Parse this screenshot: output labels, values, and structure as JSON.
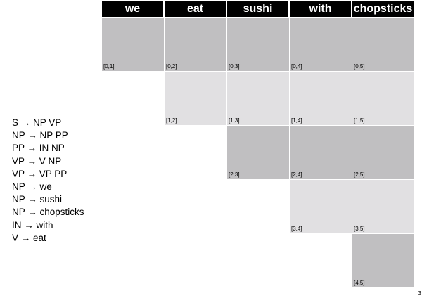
{
  "words": [
    "we",
    "eat",
    "sushi",
    "with",
    "chopsticks"
  ],
  "colors": {
    "dark_cell": "#c0bfc1",
    "light_cell": "#e1e0e2",
    "header_bg": "#000000",
    "header_text": "#ffffff"
  },
  "cells": [
    {
      "label": "[0,1]",
      "row": 0,
      "col": 0,
      "shade": "dark"
    },
    {
      "label": "[0,2]",
      "row": 0,
      "col": 1,
      "shade": "dark"
    },
    {
      "label": "[0,3]",
      "row": 0,
      "col": 2,
      "shade": "dark"
    },
    {
      "label": "[0,4]",
      "row": 0,
      "col": 3,
      "shade": "dark"
    },
    {
      "label": "[0,5]",
      "row": 0,
      "col": 4,
      "shade": "dark"
    },
    {
      "label": "[1,2]",
      "row": 1,
      "col": 1,
      "shade": "light"
    },
    {
      "label": "[1,3]",
      "row": 1,
      "col": 2,
      "shade": "light"
    },
    {
      "label": "[1,4]",
      "row": 1,
      "col": 3,
      "shade": "light"
    },
    {
      "label": "[1,5]",
      "row": 1,
      "col": 4,
      "shade": "light"
    },
    {
      "label": "[2,3]",
      "row": 2,
      "col": 2,
      "shade": "dark"
    },
    {
      "label": "[2,4]",
      "row": 2,
      "col": 3,
      "shade": "dark"
    },
    {
      "label": "[2,5]",
      "row": 2,
      "col": 4,
      "shade": "dark"
    },
    {
      "label": "[3,4]",
      "row": 3,
      "col": 3,
      "shade": "light"
    },
    {
      "label": "[3,5]",
      "row": 3,
      "col": 4,
      "shade": "light"
    },
    {
      "label": "[4,5]",
      "row": 4,
      "col": 4,
      "shade": "dark"
    }
  ],
  "grammar": [
    "S → NP VP",
    "NP → NP PP",
    "PP → IN NP",
    "VP → V NP",
    "VP → VP PP",
    "NP → we",
    "NP → sushi",
    "NP → chopsticks",
    "IN → with",
    "V → eat"
  ],
  "page_number": "3"
}
